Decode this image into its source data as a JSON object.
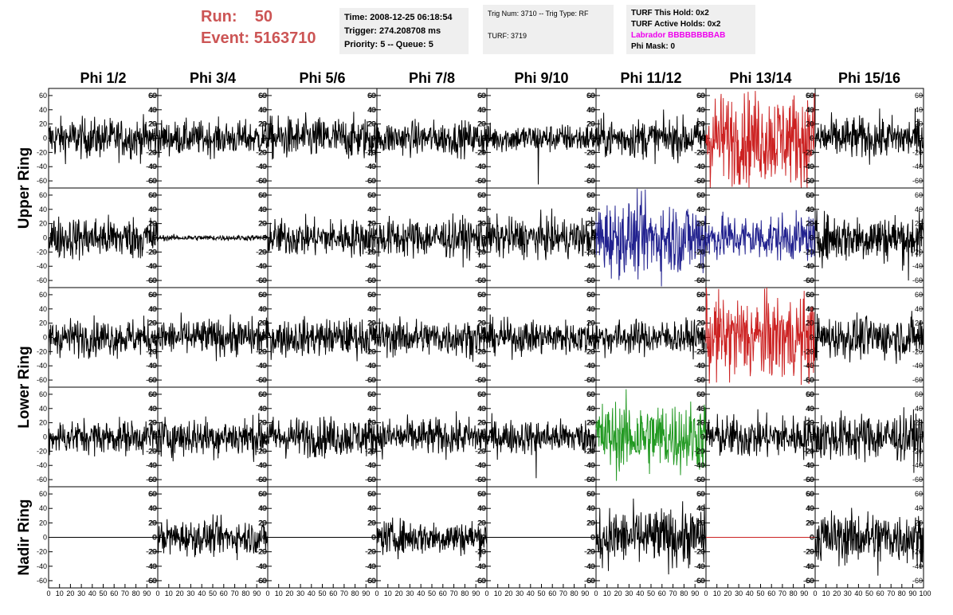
{
  "header": {
    "run_label": "Run:",
    "run_value": "50",
    "event_label": "Event:",
    "event_value": "5163710",
    "time": "Time: 2008-12-25 06:18:54",
    "trigger": "Trigger: 274.208708 ms",
    "priority": "Priority: 5 -- Queue: 5",
    "trig_num": "Trig Num: 3710 -- Trig Type: RF",
    "turf": "TURF: 3719",
    "turf_this_hold": "TURF This Hold: 0x2",
    "turf_active_holds": "TURF Active Holds: 0x2",
    "labrador": "Labrador BBBBBBBBAB",
    "phi_mask": "Phi Mask: 0"
  },
  "chart_data": {
    "type": "line",
    "columns": [
      "Phi 1/2",
      "Phi 3/4",
      "Phi 5/6",
      "Phi 7/8",
      "Phi 9/10",
      "Phi 11/12",
      "Phi 13/14",
      "Phi 15/16"
    ],
    "rows": [
      "Upper Ring",
      "Lower Ring",
      "Nadir Ring"
    ],
    "ylim": [
      -70,
      70
    ],
    "yticks": [
      -60,
      -40,
      -20,
      0,
      20,
      40,
      60
    ],
    "xlim": [
      0,
      100
    ],
    "xticks": [
      0,
      10,
      20,
      30,
      40,
      50,
      60,
      70,
      80,
      90
    ],
    "colors": {
      "default": "#000000",
      "red": "#cc2222",
      "blue": "#22228f",
      "green": "#229922"
    },
    "panels": [
      [
        {
          "amp": 14,
          "color": "default"
        },
        {
          "amp": 12,
          "color": "default"
        },
        {
          "amp": 15,
          "color": "default"
        },
        {
          "amp": 12,
          "color": "default"
        },
        {
          "amp": 10,
          "color": "default",
          "spike": [
            47,
            -65
          ]
        },
        {
          "amp": 14,
          "color": "default"
        },
        {
          "amp": 32,
          "color": "red",
          "spike": [
            90,
            -62
          ]
        },
        {
          "amp": 15,
          "color": "default"
        }
      ],
      [
        {
          "amp": 15,
          "color": "default"
        },
        {
          "amp": 2,
          "color": "default"
        },
        {
          "amp": 13,
          "color": "default"
        },
        {
          "amp": 14,
          "color": "default"
        },
        {
          "amp": 14,
          "color": "default"
        },
        {
          "amp": 26,
          "color": "blue"
        },
        {
          "amp": 16,
          "color": "blue"
        },
        {
          "amp": 17,
          "color": "default",
          "spike": [
            86,
            -60
          ]
        }
      ],
      [
        {
          "amp": 13,
          "color": "default"
        },
        {
          "amp": 13,
          "color": "default"
        },
        {
          "amp": 13,
          "color": "default"
        },
        {
          "amp": 13,
          "color": "default"
        },
        {
          "amp": 12,
          "color": "default"
        },
        {
          "amp": 12,
          "color": "default"
        },
        {
          "amp": 30,
          "color": "red"
        },
        {
          "amp": 15,
          "color": "default"
        }
      ],
      [
        {
          "amp": 12,
          "color": "default"
        },
        {
          "amp": 14,
          "color": "default"
        },
        {
          "amp": 14,
          "color": "default"
        },
        {
          "amp": 13,
          "color": "default"
        },
        {
          "amp": 12,
          "color": "default",
          "spike": [
            45,
            -58
          ]
        },
        {
          "amp": 25,
          "color": "green"
        },
        {
          "amp": 15,
          "color": "default"
        },
        {
          "amp": 17,
          "color": "default"
        }
      ],
      [
        {
          "amp": 0,
          "color": "default"
        },
        {
          "amp": 12,
          "color": "default"
        },
        {
          "amp": 0,
          "color": "default"
        },
        {
          "amp": 12,
          "color": "default"
        },
        {
          "amp": 0,
          "color": "default"
        },
        {
          "amp": 20,
          "color": "default"
        },
        {
          "amp": 0,
          "color": "red"
        },
        {
          "amp": 18,
          "color": "default",
          "spike": [
            58,
            -53
          ]
        }
      ]
    ]
  }
}
